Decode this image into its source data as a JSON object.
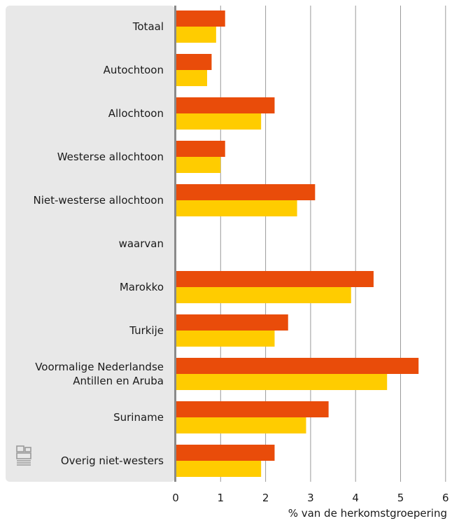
{
  "chart_data": {
    "type": "bar",
    "orientation": "horizontal",
    "categories": [
      "Totaal",
      "Autochtoon",
      "Allochtoon",
      "Westerse allochtoon",
      "Niet-westerse allochtoon",
      "waarvan",
      "Marokko",
      "Turkije",
      "Voormalige Nederlandse Antillen en Aruba",
      "Suriname",
      "Overig niet-westers"
    ],
    "category_lines": [
      [
        "Totaal"
      ],
      [
        "Autochtoon"
      ],
      [
        "Allochtoon"
      ],
      [
        "Westerse allochtoon"
      ],
      [
        "Niet-westerse allochtoon"
      ],
      [
        "waarvan"
      ],
      [
        "Marokko"
      ],
      [
        "Turkije"
      ],
      [
        "Voormalige Nederlandse",
        "Antillen en Aruba"
      ],
      [
        "Suriname"
      ],
      [
        "Overig niet-westers"
      ]
    ],
    "series": [
      {
        "color": "#e94c0a",
        "values": [
          1.1,
          0.8,
          2.2,
          1.1,
          3.1,
          null,
          4.4,
          2.5,
          5.4,
          3.4,
          2.2
        ]
      },
      {
        "color": "#ffcc00",
        "values": [
          0.9,
          0.7,
          1.9,
          1.0,
          2.7,
          null,
          3.9,
          2.2,
          4.7,
          2.9,
          1.9
        ]
      }
    ],
    "xlim": [
      0,
      6
    ],
    "xticks": [
      "0",
      "1",
      "2",
      "3",
      "4",
      "5",
      "6"
    ],
    "xlabel": "% van de herkomstgroepering",
    "grid": true,
    "legend": "none"
  },
  "logo": {
    "text": "cbs"
  },
  "colors": {
    "label_panel": "#e8e8e8",
    "grid": "#9a9a9a",
    "axis": "#8a8a8a",
    "text": "#1a1a1a"
  }
}
